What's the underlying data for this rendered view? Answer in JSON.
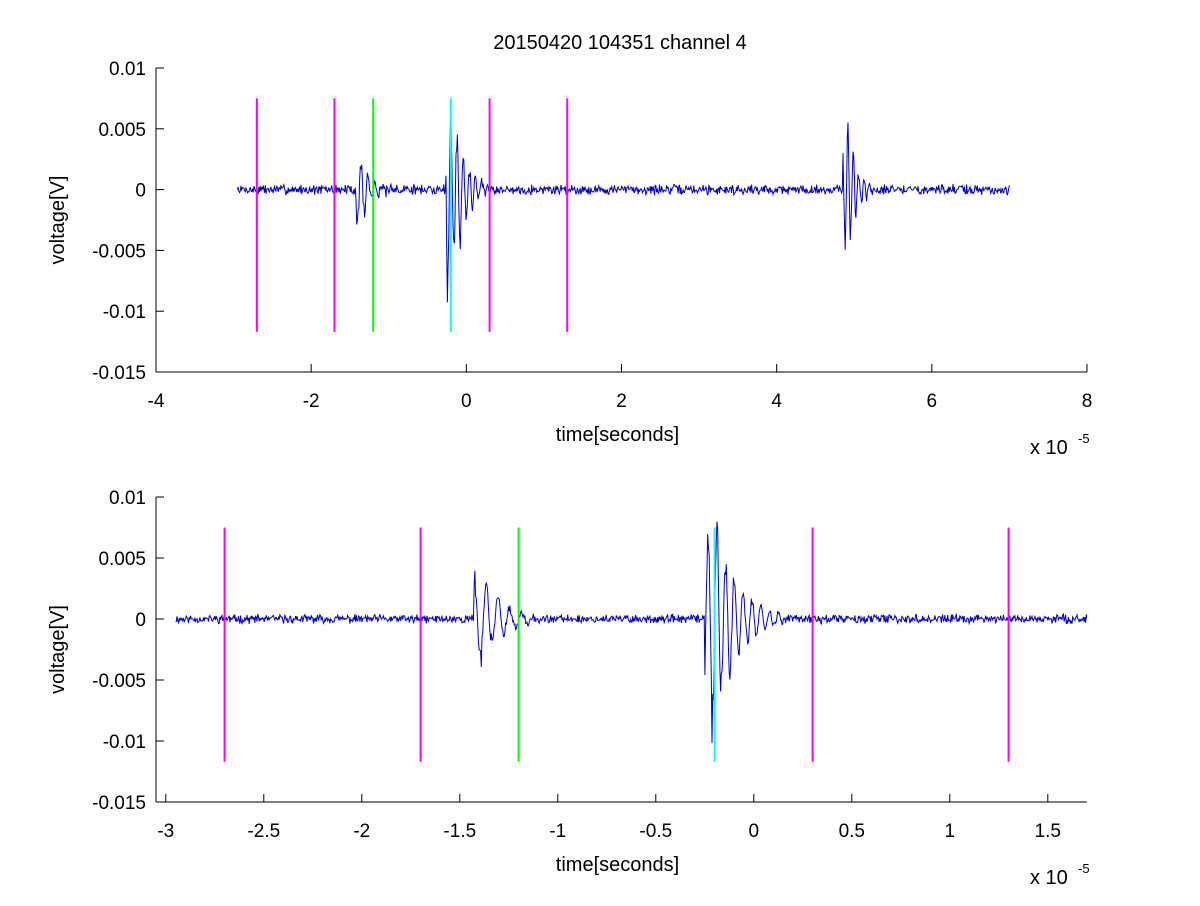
{
  "figure": {
    "title": "20150420 104351 channel 4"
  },
  "colors": {
    "signal": "#0000cc",
    "magenta": "#ff00ff",
    "green": "#00ff00",
    "cyan": "#00ffff",
    "axes": "#000000"
  },
  "chart_data": [
    {
      "type": "line",
      "title": "20150420 104351 channel 4",
      "xlabel": "time[seconds]",
      "ylabel": "voltage[V]",
      "x_multiplier_label": "x 10",
      "x_multiplier_exp": "-5",
      "xlim": [
        -4,
        8
      ],
      "ylim": [
        -0.015,
        0.01
      ],
      "xticks": [
        -4,
        -2,
        0,
        2,
        4,
        6,
        8
      ],
      "xtick_labels": [
        "-4",
        "-2",
        "0",
        "2",
        "4",
        "6",
        "8"
      ],
      "yticks": [
        0.01,
        0.005,
        0,
        -0.005,
        -0.01,
        -0.015
      ],
      "ytick_labels": [
        "0.01",
        "0.005",
        "0",
        "-0.005",
        "-0.01",
        "-0.015"
      ],
      "grid": false,
      "series": [
        {
          "x_range": [
            -2.95,
            7.0
          ],
          "noise": 0.0007,
          "seed": 7,
          "bursts": [
            {
              "t": -1.38,
              "amp": 0.0042,
              "dur": 0.35,
              "period": 0.09
            },
            {
              "t": -0.22,
              "amp": 0.0105,
              "dur": 0.5,
              "period": 0.08
            },
            {
              "t": 4.9,
              "amp": 0.0072,
              "dur": 0.35,
              "period": 0.07
            }
          ]
        }
      ],
      "vlines": [
        {
          "x": -2.7,
          "color": "magenta"
        },
        {
          "x": -1.7,
          "color": "magenta"
        },
        {
          "x": -1.2,
          "color": "green"
        },
        {
          "x": -0.2,
          "color": "cyan"
        },
        {
          "x": 0.3,
          "color": "magenta"
        },
        {
          "x": 1.3,
          "color": "magenta"
        }
      ],
      "vline_range": [
        -0.0117,
        0.0075
      ]
    },
    {
      "type": "line",
      "title": "",
      "xlabel": "time[seconds]",
      "ylabel": "voltage[V]",
      "x_multiplier_label": "x 10",
      "x_multiplier_exp": "-5",
      "xlim": [
        -3.05,
        1.7
      ],
      "ylim": [
        -0.015,
        0.01
      ],
      "xticks": [
        -3,
        -2.5,
        -2,
        -1.5,
        -1,
        -0.5,
        0,
        0.5,
        1,
        1.5
      ],
      "xtick_labels": [
        "-3",
        "-2.5",
        "-2",
        "-1.5",
        "-1",
        "-0.5",
        "0",
        "0.5",
        "1",
        "1.5"
      ],
      "yticks": [
        0.01,
        0.005,
        0,
        -0.005,
        -0.01,
        -0.015
      ],
      "ytick_labels": [
        "0.01",
        "0.005",
        "0",
        "-0.005",
        "-0.01",
        "-0.015"
      ],
      "grid": false,
      "series": [
        {
          "x_range": [
            -2.95,
            1.7
          ],
          "noise": 0.0006,
          "seed": 11,
          "bursts": [
            {
              "t": -1.38,
              "amp": 0.0042,
              "dur": 0.3,
              "period": 0.06
            },
            {
              "t": -0.2,
              "amp": 0.0105,
              "dur": 0.35,
              "period": 0.045
            }
          ]
        }
      ],
      "vlines": [
        {
          "x": -2.7,
          "color": "magenta"
        },
        {
          "x": -1.7,
          "color": "magenta"
        },
        {
          "x": -1.2,
          "color": "green"
        },
        {
          "x": -0.2,
          "color": "cyan"
        },
        {
          "x": 0.3,
          "color": "magenta"
        },
        {
          "x": 1.3,
          "color": "magenta"
        }
      ],
      "vline_range": [
        -0.0117,
        0.0075
      ]
    }
  ]
}
